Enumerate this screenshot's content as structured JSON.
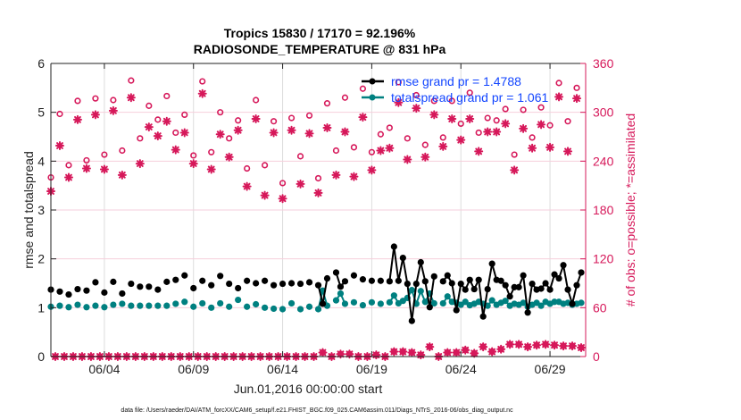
{
  "chart_data": {
    "type": "scatter",
    "title": "Tropics 15830 / 17170 = 92.196%",
    "subtitle": "RADIOSONDE_TEMPERATURE @ 831 hPa",
    "xlabel": "Jun.01,2016 00:00:00 start",
    "ylabel": "rmse and totalspread",
    "ylabel_right": "# of obs: o=possible; *=assimilated",
    "footer": "data file: /Users/raeder/DAI/ATM_forcXX/CAM6_setup/f.e21.FHIST_BGC.f09_025.CAM6assim.011/Diags_NTrS_2016-06/obs_diag_output.nc",
    "xlim_days": [
      0,
      30
    ],
    "ylim": [
      0,
      6
    ],
    "ylim_right": [
      0,
      360
    ],
    "x_ticks": [
      {
        "day": 3,
        "label": "06/04"
      },
      {
        "day": 8,
        "label": "06/09"
      },
      {
        "day": 13,
        "label": "06/14"
      },
      {
        "day": 18,
        "label": "06/19"
      },
      {
        "day": 23,
        "label": "06/24"
      },
      {
        "day": 28,
        "label": "06/29"
      }
    ],
    "y_ticks": [
      "0",
      "1",
      "2",
      "3",
      "4",
      "5",
      "6"
    ],
    "y_ticks_right": [
      "0",
      "60",
      "120",
      "180",
      "240",
      "300",
      "360"
    ],
    "grid": true,
    "legend_position": "top-right",
    "colors": {
      "rmse": "#000000",
      "totalspread": "#008080",
      "obs": "#d6185a",
      "legend_text": "#1346ff"
    },
    "series": [
      {
        "name": "rmse grand pr = 1.4788",
        "axis": "left",
        "points": [
          [
            0,
            1.37
          ],
          [
            0.5,
            1.33
          ],
          [
            1,
            1.27
          ],
          [
            1.5,
            1.38
          ],
          [
            2,
            1.35
          ],
          [
            2.5,
            1.52
          ],
          [
            3,
            1.31
          ],
          [
            3.5,
            1.53
          ],
          [
            4,
            1.29
          ],
          [
            4.5,
            1.49
          ],
          [
            5,
            1.43
          ],
          [
            5.5,
            1.43
          ],
          [
            6,
            1.37
          ],
          [
            6.5,
            1.53
          ],
          [
            7,
            1.57
          ],
          [
            7.5,
            1.66
          ],
          [
            8,
            1.4
          ],
          [
            8.5,
            1.55
          ],
          [
            9,
            1.46
          ],
          [
            9.5,
            1.65
          ],
          [
            10,
            1.49
          ],
          [
            10.5,
            1.4
          ],
          [
            11,
            1.55
          ],
          [
            11.5,
            1.5
          ],
          [
            12,
            1.55
          ],
          [
            12.5,
            1.46
          ],
          [
            13,
            1.49
          ],
          [
            13.5,
            1.5
          ],
          [
            14,
            1.49
          ],
          [
            14.5,
            1.52
          ],
          [
            15,
            1.46
          ],
          [
            15.25,
            1.08
          ],
          [
            15.5,
            1.6
          ],
          [
            16,
            1.72
          ],
          [
            16.25,
            1.43
          ],
          [
            16.5,
            1.54
          ],
          [
            17,
            1.66
          ],
          [
            17.5,
            1.58
          ],
          [
            18,
            1.55
          ],
          [
            18.5,
            1.55
          ],
          [
            19,
            1.54
          ],
          [
            19.25,
            2.25
          ],
          [
            19.5,
            1.55
          ],
          [
            19.75,
            2.02
          ],
          [
            20,
            1.49
          ],
          [
            20.25,
            0.73
          ],
          [
            20.5,
            1.49
          ],
          [
            20.75,
            1.93
          ],
          [
            21,
            1.54
          ],
          [
            21.25,
            1.01
          ],
          [
            21.5,
            1.64
          ],
          [
            22,
            1.54
          ],
          [
            22.25,
            1.66
          ],
          [
            22.5,
            1.5
          ],
          [
            22.75,
            0.95
          ],
          [
            23,
            1.49
          ],
          [
            23.25,
            1.37
          ],
          [
            23.5,
            1.57
          ],
          [
            23.75,
            1.38
          ],
          [
            24,
            1.57
          ],
          [
            24.25,
            0.82
          ],
          [
            24.5,
            1.38
          ],
          [
            24.75,
            1.9
          ],
          [
            25,
            1.57
          ],
          [
            25.25,
            1.55
          ],
          [
            25.5,
            1.46
          ],
          [
            25.75,
            1.23
          ],
          [
            26,
            1.42
          ],
          [
            26.25,
            1.42
          ],
          [
            26.5,
            1.66
          ],
          [
            26.75,
            0.9
          ],
          [
            27,
            1.49
          ],
          [
            27.25,
            1.37
          ],
          [
            27.5,
            1.39
          ],
          [
            27.75,
            1.5
          ],
          [
            28,
            1.37
          ],
          [
            28.25,
            1.68
          ],
          [
            28.5,
            1.6
          ],
          [
            28.75,
            1.87
          ],
          [
            29,
            1.37
          ],
          [
            29.25,
            1.08
          ],
          [
            29.5,
            1.46
          ],
          [
            29.75,
            1.72
          ]
        ]
      },
      {
        "name": "totalspread grand pr = 1.061",
        "axis": "left",
        "points": [
          [
            0,
            1.02
          ],
          [
            0.5,
            1.04
          ],
          [
            1,
            1.01
          ],
          [
            1.5,
            1.06
          ],
          [
            2,
            1.01
          ],
          [
            2.5,
            1.04
          ],
          [
            3,
            1.01
          ],
          [
            3.5,
            1.06
          ],
          [
            4,
            1.08
          ],
          [
            4.5,
            1.04
          ],
          [
            5,
            1.04
          ],
          [
            5.5,
            1.04
          ],
          [
            6,
            1.04
          ],
          [
            6.5,
            1.04
          ],
          [
            7,
            1.08
          ],
          [
            7.5,
            1.12
          ],
          [
            8,
            1.02
          ],
          [
            8.5,
            1.09
          ],
          [
            9,
            1.0
          ],
          [
            9.5,
            1.09
          ],
          [
            10,
            1.02
          ],
          [
            10.5,
            1.16
          ],
          [
            11,
            1.02
          ],
          [
            11.5,
            1.07
          ],
          [
            12,
            1.0
          ],
          [
            12.5,
            0.98
          ],
          [
            13,
            0.97
          ],
          [
            13.5,
            1.09
          ],
          [
            14,
            0.97
          ],
          [
            14.5,
            1.02
          ],
          [
            15,
            0.97
          ],
          [
            15.25,
            1.35
          ],
          [
            15.5,
            1.04
          ],
          [
            16,
            1.15
          ],
          [
            16.25,
            1.29
          ],
          [
            16.5,
            1.08
          ],
          [
            17,
            1.11
          ],
          [
            17.5,
            1.05
          ],
          [
            18,
            1.11
          ],
          [
            18.5,
            1.08
          ],
          [
            19,
            1.11
          ],
          [
            19.25,
            1.25
          ],
          [
            19.5,
            1.09
          ],
          [
            19.75,
            1.14
          ],
          [
            20,
            1.2
          ],
          [
            20.25,
            1.36
          ],
          [
            20.5,
            1.08
          ],
          [
            20.75,
            1.34
          ],
          [
            21,
            1.12
          ],
          [
            21.25,
            1.29
          ],
          [
            21.5,
            1.09
          ],
          [
            22,
            1.09
          ],
          [
            22.25,
            1.23
          ],
          [
            22.5,
            1.12
          ],
          [
            22.75,
            1.1
          ],
          [
            23,
            1.06
          ],
          [
            23.25,
            1.12
          ],
          [
            23.5,
            1.05
          ],
          [
            23.75,
            1.08
          ],
          [
            24,
            1.12
          ],
          [
            24.25,
            1.08
          ],
          [
            24.5,
            1.04
          ],
          [
            24.75,
            1.15
          ],
          [
            25,
            1.06
          ],
          [
            25.25,
            1.1
          ],
          [
            25.5,
            1.14
          ],
          [
            25.75,
            1.04
          ],
          [
            26,
            1.08
          ],
          [
            26.25,
            1.06
          ],
          [
            26.5,
            1.1
          ],
          [
            26.75,
            1.02
          ],
          [
            27,
            1.06
          ],
          [
            27.25,
            1.1
          ],
          [
            27.5,
            1.04
          ],
          [
            27.75,
            1.12
          ],
          [
            28,
            1.08
          ],
          [
            28.25,
            1.12
          ],
          [
            28.5,
            1.12
          ],
          [
            28.75,
            1.08
          ],
          [
            29,
            1.1
          ],
          [
            29.25,
            1.06
          ],
          [
            29.5,
            1.08
          ],
          [
            29.75,
            1.1
          ]
        ]
      },
      {
        "name": "obs possible (o)",
        "axis": "right",
        "t_start": 0,
        "t_step": 0.5,
        "values": [
          220,
          298,
          235,
          314,
          241,
          317,
          248,
          315,
          253,
          339,
          268,
          308,
          291,
          320,
          275,
          297,
          247,
          338,
          251,
          300,
          268,
          290,
          231,
          315,
          235,
          289,
          213,
          293,
          246,
          296,
          219,
          311,
          253,
          318,
          257,
          329,
          251,
          273,
          281,
          337,
          268,
          321,
          260,
          314,
          269,
          314,
          286,
          324,
          275,
          293,
          290,
          304,
          248,
          303,
          269,
          306,
          284,
          336,
          289,
          330
        ]
      },
      {
        "name": "obs assimilated (*)",
        "axis": "right",
        "t_start": 0,
        "t_step": 0.5,
        "values": [
          203,
          259,
          220,
          291,
          231,
          297,
          230,
          302,
          223,
          318,
          237,
          282,
          271,
          289,
          254,
          275,
          237,
          323,
          230,
          273,
          245,
          278,
          209,
          292,
          198,
          275,
          194,
          278,
          212,
          274,
          201,
          281,
          223,
          276,
          221,
          294,
          229,
          253,
          256,
          312,
          242,
          305,
          245,
          297,
          258,
          292,
          266,
          292,
          252,
          276,
          276,
          286,
          229,
          280,
          256,
          285,
          257,
          319,
          252,
          317
        ]
      },
      {
        "name": "obs possible/assimilated off-cycle",
        "axis": "right",
        "t_start": 0.25,
        "t_step": 0.5,
        "values": [
          0,
          0,
          0,
          0,
          0,
          0,
          0,
          0,
          0,
          0,
          0,
          0,
          0,
          0,
          0,
          0,
          0,
          0,
          0,
          0,
          0,
          0,
          0,
          0,
          0,
          0,
          0,
          0,
          0,
          0,
          5,
          0,
          3,
          3,
          0,
          0,
          2,
          0,
          6,
          6,
          5,
          2,
          12,
          0,
          5,
          5,
          8,
          4,
          12,
          6,
          9,
          15,
          15,
          12,
          14,
          15,
          14,
          13,
          13,
          11
        ]
      }
    ]
  }
}
